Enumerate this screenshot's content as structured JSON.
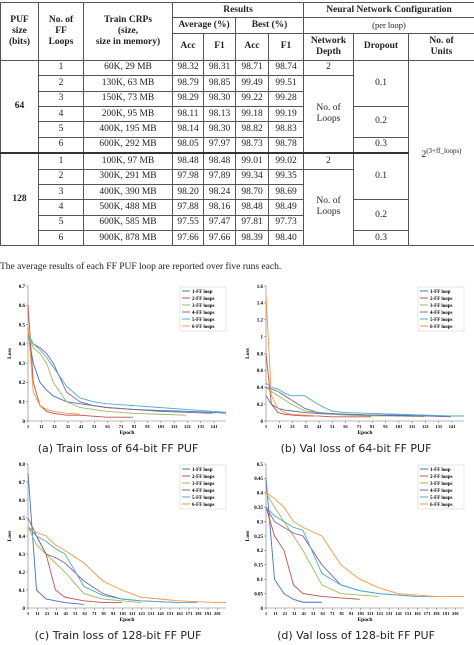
{
  "table": {
    "header": {
      "puf": [
        "PUF",
        "size",
        "(bits)"
      ],
      "loops": [
        "No. of",
        "FF",
        "Loops"
      ],
      "crps": [
        "Train CRPs",
        "(size,",
        "size in memory)"
      ],
      "results": "Results",
      "average": "Average (%)",
      "best": "Best (%)",
      "acc": "Acc",
      "f1": "F1",
      "nn": "Neural Network Configuration",
      "per_loop": "(per loop)",
      "depth": [
        "Network",
        "Depth"
      ],
      "dropout": "Dropout",
      "units": [
        "No. of",
        "Units"
      ]
    },
    "units": {
      "base": "2",
      "exponent": "(3+ff_loops)"
    },
    "groups": [
      {
        "size": "64",
        "depth_first": "2",
        "depth_rest": [
          "No. of",
          "Loops"
        ],
        "dropouts": [
          "0.1",
          "0.2",
          "0.3"
        ],
        "rows": [
          [
            "1",
            "60K, 29 MB",
            "98.32",
            "98.31",
            "98.71",
            "98.74"
          ],
          [
            "2",
            "130K, 63 MB",
            "98.79",
            "98.85",
            "99.49",
            "99.51"
          ],
          [
            "3",
            "150K, 73 MB",
            "98.29",
            "98.30",
            "99.22",
            "99.28"
          ],
          [
            "4",
            "200K, 95 MB",
            "98.11",
            "98.13",
            "99.18",
            "99.19"
          ],
          [
            "5",
            "400K, 195 MB",
            "98.14",
            "98.30",
            "98.82",
            "98.83"
          ],
          [
            "6",
            "600K, 292 MB",
            "98.05",
            "97.97",
            "98.73",
            "98.78"
          ]
        ]
      },
      {
        "size": "128",
        "depth_first": "2",
        "depth_rest": [
          "No. of",
          "Loops"
        ],
        "dropouts": [
          "0.1",
          "0.2",
          "0.3"
        ],
        "rows": [
          [
            "1",
            "100K, 97 MB",
            "98.48",
            "98.48",
            "99.01",
            "99.02"
          ],
          [
            "2",
            "300K, 291 MB",
            "97.98",
            "97.89",
            "99.34",
            "99.35"
          ],
          [
            "3",
            "400K, 390 MB",
            "98.20",
            "98.24",
            "98.70",
            "98.69"
          ],
          [
            "4",
            "500K, 488 MB",
            "97.88",
            "98.16",
            "98.48",
            "98.49"
          ],
          [
            "5",
            "600K, 585 MB",
            "97.55",
            "97.47",
            "97.81",
            "97.73"
          ],
          [
            "6",
            "900K, 878 MB",
            "97.66",
            "97.66",
            "98.39",
            "98.40"
          ]
        ]
      }
    ]
  },
  "note": "The average results of each FF PUF loop are reported over five runs each.",
  "figures": [
    {
      "caption": "(a) Train loss of 64-bit FF PUF",
      "chart_data": {
        "type": "line",
        "xlabel": "Epoch",
        "ylabel": "Loss",
        "xlim": [
          1,
          150
        ],
        "ylim": [
          0,
          0.7
        ],
        "xticks": [
          1,
          11,
          21,
          31,
          41,
          51,
          61,
          71,
          81,
          91,
          101,
          111,
          121,
          131,
          141
        ],
        "yticks": [
          0,
          0.1,
          0.2,
          0.3,
          0.4,
          0.5,
          0.6,
          0.7
        ],
        "legend": "upper right",
        "x": [
          1,
          5,
          10,
          15,
          20,
          30,
          40,
          50,
          60,
          80,
          100,
          120,
          140,
          150
        ],
        "series": [
          {
            "name": "1-FF loop",
            "color": "#4472c4",
            "values": [
              0.45,
              0.3,
              0.2,
              0.16,
              0.13,
              0.1,
              0.09,
              0.08,
              0.07,
              0.06,
              0.055,
              0.05,
              0.045,
              0.04
            ]
          },
          {
            "name": "2-FF loops",
            "color": "#c0504d",
            "values": [
              0.6,
              0.2,
              0.08,
              0.05,
              0.04,
              0.03,
              0.03,
              0.025,
              0.02,
              0.02,
              null,
              null,
              null,
              null
            ]
          },
          {
            "name": "3-FF loops",
            "color": "#9bbb59",
            "values": [
              0.45,
              0.38,
              0.35,
              0.3,
              0.2,
              0.1,
              0.07,
              0.06,
              0.05,
              0.04,
              0.035,
              0.03,
              null,
              null
            ]
          },
          {
            "name": "4-FF loops",
            "color": "#8064a2",
            "values": [
              0.45,
              0.4,
              0.38,
              0.35,
              0.3,
              0.15,
              0.1,
              0.08,
              0.07,
              0.06,
              0.05,
              0.045,
              0.04,
              null
            ]
          },
          {
            "name": "5-FF loops",
            "color": "#4bacc6",
            "values": [
              0.45,
              0.4,
              0.37,
              0.33,
              0.28,
              0.18,
              0.12,
              0.1,
              0.09,
              0.08,
              0.07,
              0.06,
              0.05,
              0.045
            ]
          },
          {
            "name": "6-FF loops",
            "color": "#f79646",
            "values": [
              0.5,
              0.15,
              0.08,
              0.06,
              0.05,
              0.04,
              0.035,
              null,
              null,
              null,
              null,
              null,
              null,
              null
            ]
          }
        ]
      }
    },
    {
      "caption": "(b) Val loss of 64-bit FF PUF",
      "chart_data": {
        "type": "line",
        "xlabel": "Epoch",
        "ylabel": "Loss",
        "xlim": [
          1,
          150
        ],
        "ylim": [
          0,
          1.6
        ],
        "xticks": [
          1,
          11,
          21,
          31,
          41,
          51,
          61,
          71,
          81,
          91,
          101,
          111,
          121,
          131,
          141
        ],
        "yticks": [
          0,
          0.2,
          0.4,
          0.6,
          0.8,
          1,
          1.2,
          1.4,
          1.6
        ],
        "legend": "upper right",
        "x": [
          1,
          5,
          10,
          15,
          20,
          30,
          40,
          50,
          60,
          80,
          100,
          120,
          140,
          150
        ],
        "series": [
          {
            "name": "1-FF loop",
            "color": "#4472c4",
            "values": [
              0.3,
              0.2,
              0.15,
              0.13,
              0.12,
              0.1,
              0.09,
              0.08,
              0.08,
              0.07,
              0.07,
              0.06,
              0.06,
              0.06
            ]
          },
          {
            "name": "2-FF loops",
            "color": "#c0504d",
            "values": [
              0.8,
              0.2,
              0.1,
              0.08,
              0.07,
              0.06,
              0.06,
              0.05,
              0.05,
              0.05,
              null,
              null,
              null,
              null
            ]
          },
          {
            "name": "3-FF loops",
            "color": "#9bbb59",
            "values": [
              0.4,
              0.35,
              0.3,
              0.25,
              0.2,
              0.12,
              0.1,
              0.08,
              0.07,
              0.06,
              0.06,
              0.05,
              null,
              null
            ]
          },
          {
            "name": "4-FF loops",
            "color": "#8064a2",
            "values": [
              0.4,
              0.38,
              0.35,
              0.3,
              0.25,
              0.15,
              0.1,
              0.09,
              0.08,
              0.07,
              0.06,
              0.06,
              0.05,
              null
            ]
          },
          {
            "name": "5-FF loops",
            "color": "#4bacc6",
            "values": [
              0.45,
              0.4,
              0.38,
              0.33,
              0.3,
              0.3,
              0.2,
              0.12,
              0.1,
              0.09,
              0.08,
              0.07,
              0.06,
              0.06
            ]
          },
          {
            "name": "6-FF loops",
            "color": "#f79646",
            "values": [
              1.5,
              0.3,
              0.15,
              0.1,
              0.08,
              0.07,
              0.06,
              null,
              null,
              null,
              null,
              null,
              null,
              null
            ]
          }
        ]
      }
    },
    {
      "caption": "(c) Train loss of 128-bit FF PUF",
      "chart_data": {
        "type": "line",
        "xlabel": "Epoch",
        "ylabel": "Loss",
        "xlim": [
          1,
          210
        ],
        "ylim": [
          0,
          0.8
        ],
        "xticks": [
          1,
          11,
          21,
          31,
          41,
          51,
          61,
          71,
          81,
          91,
          101,
          111,
          121,
          131,
          141,
          151,
          161,
          171,
          181,
          191,
          201
        ],
        "yticks": [
          0,
          0.1,
          0.2,
          0.3,
          0.4,
          0.5,
          0.6,
          0.7,
          0.8
        ],
        "legend": "upper right",
        "x": [
          1,
          10,
          20,
          30,
          40,
          60,
          80,
          100,
          120,
          140,
          160,
          180,
          200,
          210
        ],
        "series": [
          {
            "name": "1-FF loop",
            "color": "#4472c4",
            "values": [
              0.75,
              0.1,
              0.05,
              0.04,
              0.03,
              0.02,
              null,
              null,
              null,
              null,
              null,
              null,
              null,
              null
            ]
          },
          {
            "name": "2-FF loops",
            "color": "#c0504d",
            "values": [
              0.45,
              0.4,
              0.3,
              0.1,
              0.06,
              0.04,
              0.03,
              0.03,
              null,
              null,
              null,
              null,
              null,
              null
            ]
          },
          {
            "name": "3-FF loops",
            "color": "#9bbb59",
            "values": [
              0.45,
              0.35,
              0.3,
              0.25,
              0.2,
              0.08,
              0.05,
              0.04,
              0.03,
              null,
              null,
              null,
              null,
              null
            ]
          },
          {
            "name": "4-FF loops",
            "color": "#8064a2",
            "values": [
              0.5,
              0.4,
              0.3,
              0.28,
              0.25,
              0.15,
              0.08,
              0.05,
              0.04,
              0.035,
              0.03,
              null,
              null,
              null
            ]
          },
          {
            "name": "5-FF loops",
            "color": "#4bacc6",
            "values": [
              0.45,
              0.4,
              0.37,
              0.33,
              0.3,
              0.12,
              0.07,
              0.05,
              0.04,
              0.035,
              0.03,
              0.03,
              null,
              null
            ]
          },
          {
            "name": "6-FF loops",
            "color": "#f79646",
            "values": [
              0.45,
              0.42,
              0.4,
              0.35,
              0.32,
              0.25,
              0.15,
              0.1,
              0.06,
              0.05,
              0.04,
              0.035,
              0.03,
              0.03
            ]
          }
        ]
      }
    },
    {
      "caption": "(d) Val loss of 128-bit FF PUF",
      "chart_data": {
        "type": "line",
        "xlabel": "Epoch",
        "ylabel": "Loss",
        "xlim": [
          1,
          210
        ],
        "ylim": [
          0,
          0.5
        ],
        "xticks": [
          1,
          11,
          21,
          31,
          41,
          51,
          61,
          71,
          81,
          91,
          101,
          111,
          121,
          131,
          141,
          151,
          161,
          171,
          181,
          191,
          201
        ],
        "yticks": [
          0,
          0.05,
          0.1,
          0.15,
          0.2,
          0.25,
          0.3,
          0.35,
          0.4,
          0.45,
          0.5
        ],
        "legend": "upper right",
        "x": [
          1,
          10,
          20,
          30,
          40,
          60,
          80,
          100,
          120,
          140,
          160,
          180,
          200,
          210
        ],
        "series": [
          {
            "name": "1-FF loop",
            "color": "#4472c4",
            "values": [
              0.45,
              0.1,
              0.05,
              0.03,
              0.02,
              0.02,
              null,
              null,
              null,
              null,
              null,
              null,
              null,
              null
            ]
          },
          {
            "name": "2-FF loops",
            "color": "#c0504d",
            "values": [
              0.35,
              0.25,
              0.2,
              0.08,
              0.05,
              0.04,
              0.035,
              0.03,
              null,
              null,
              null,
              null,
              null,
              null
            ]
          },
          {
            "name": "3-FF loops",
            "color": "#9bbb59",
            "values": [
              0.4,
              0.35,
              0.3,
              0.25,
              0.2,
              0.08,
              0.05,
              0.045,
              0.04,
              null,
              null,
              null,
              null,
              null
            ]
          },
          {
            "name": "4-FF loops",
            "color": "#8064a2",
            "values": [
              0.35,
              0.3,
              0.28,
              0.26,
              0.25,
              0.15,
              0.08,
              0.06,
              0.05,
              0.045,
              0.04,
              null,
              null,
              null
            ]
          },
          {
            "name": "5-FF loops",
            "color": "#4bacc6",
            "values": [
              0.35,
              0.32,
              0.3,
              0.28,
              0.27,
              0.12,
              0.08,
              0.06,
              0.05,
              0.045,
              0.04,
              0.04,
              null,
              null
            ]
          },
          {
            "name": "6-FF loops",
            "color": "#f79646",
            "values": [
              0.4,
              0.38,
              0.35,
              0.3,
              0.28,
              0.25,
              0.15,
              0.1,
              0.07,
              0.05,
              0.045,
              0.04,
              0.04,
              0.04
            ]
          }
        ]
      }
    }
  ]
}
